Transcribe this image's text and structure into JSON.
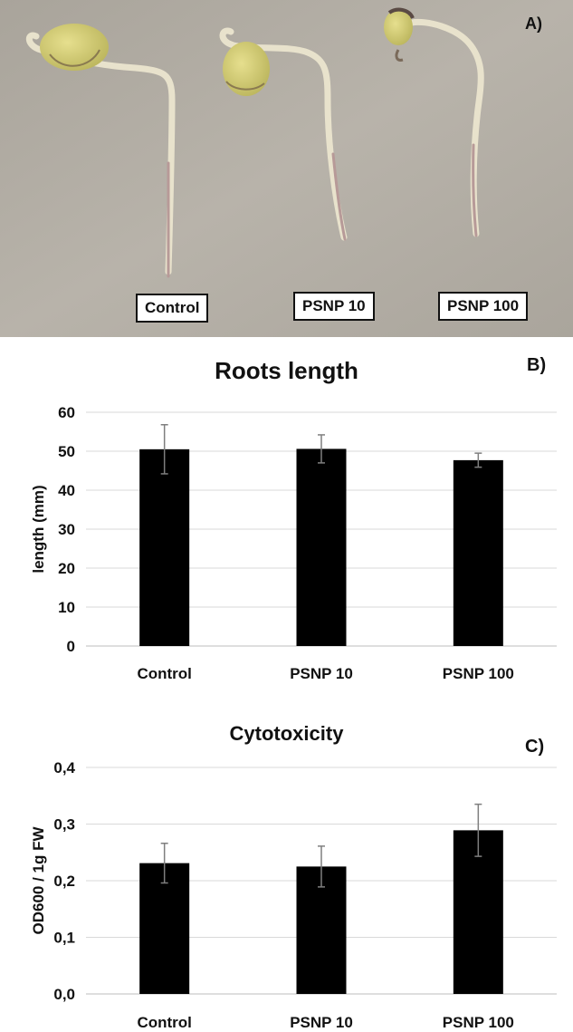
{
  "panel_a": {
    "letter": "A)",
    "labels": [
      "Control",
      "PSNP 10",
      "PSNP 100"
    ]
  },
  "chart_data": [
    {
      "panel_letter": "B)",
      "type": "bar",
      "title": "Roots length",
      "xlabel": "",
      "ylabel": "length (mm)",
      "categories": [
        "Control",
        "PSNP 10",
        "PSNP 100"
      ],
      "values": [
        50.5,
        50.6,
        47.7
      ],
      "errors": [
        6.3,
        3.6,
        1.8
      ],
      "ylim": [
        0,
        60
      ],
      "ytick_labels": [
        "0",
        "10",
        "20",
        "30",
        "40",
        "50",
        "60"
      ],
      "grid": true,
      "bar_color": "#000000"
    },
    {
      "panel_letter": "C)",
      "type": "bar",
      "title": "Cytotoxicity",
      "xlabel": "",
      "ylabel": "OD600 / 1g FW",
      "categories": [
        "Control",
        "PSNP 10",
        "PSNP 100"
      ],
      "values": [
        0.231,
        0.225,
        0.289
      ],
      "errors": [
        0.035,
        0.036,
        0.046
      ],
      "ylim": [
        0,
        0.4
      ],
      "ytick_labels": [
        "0,0",
        "0,1",
        "0,2",
        "0,3",
        "0,4"
      ],
      "grid": true,
      "bar_color": "#000000"
    }
  ]
}
